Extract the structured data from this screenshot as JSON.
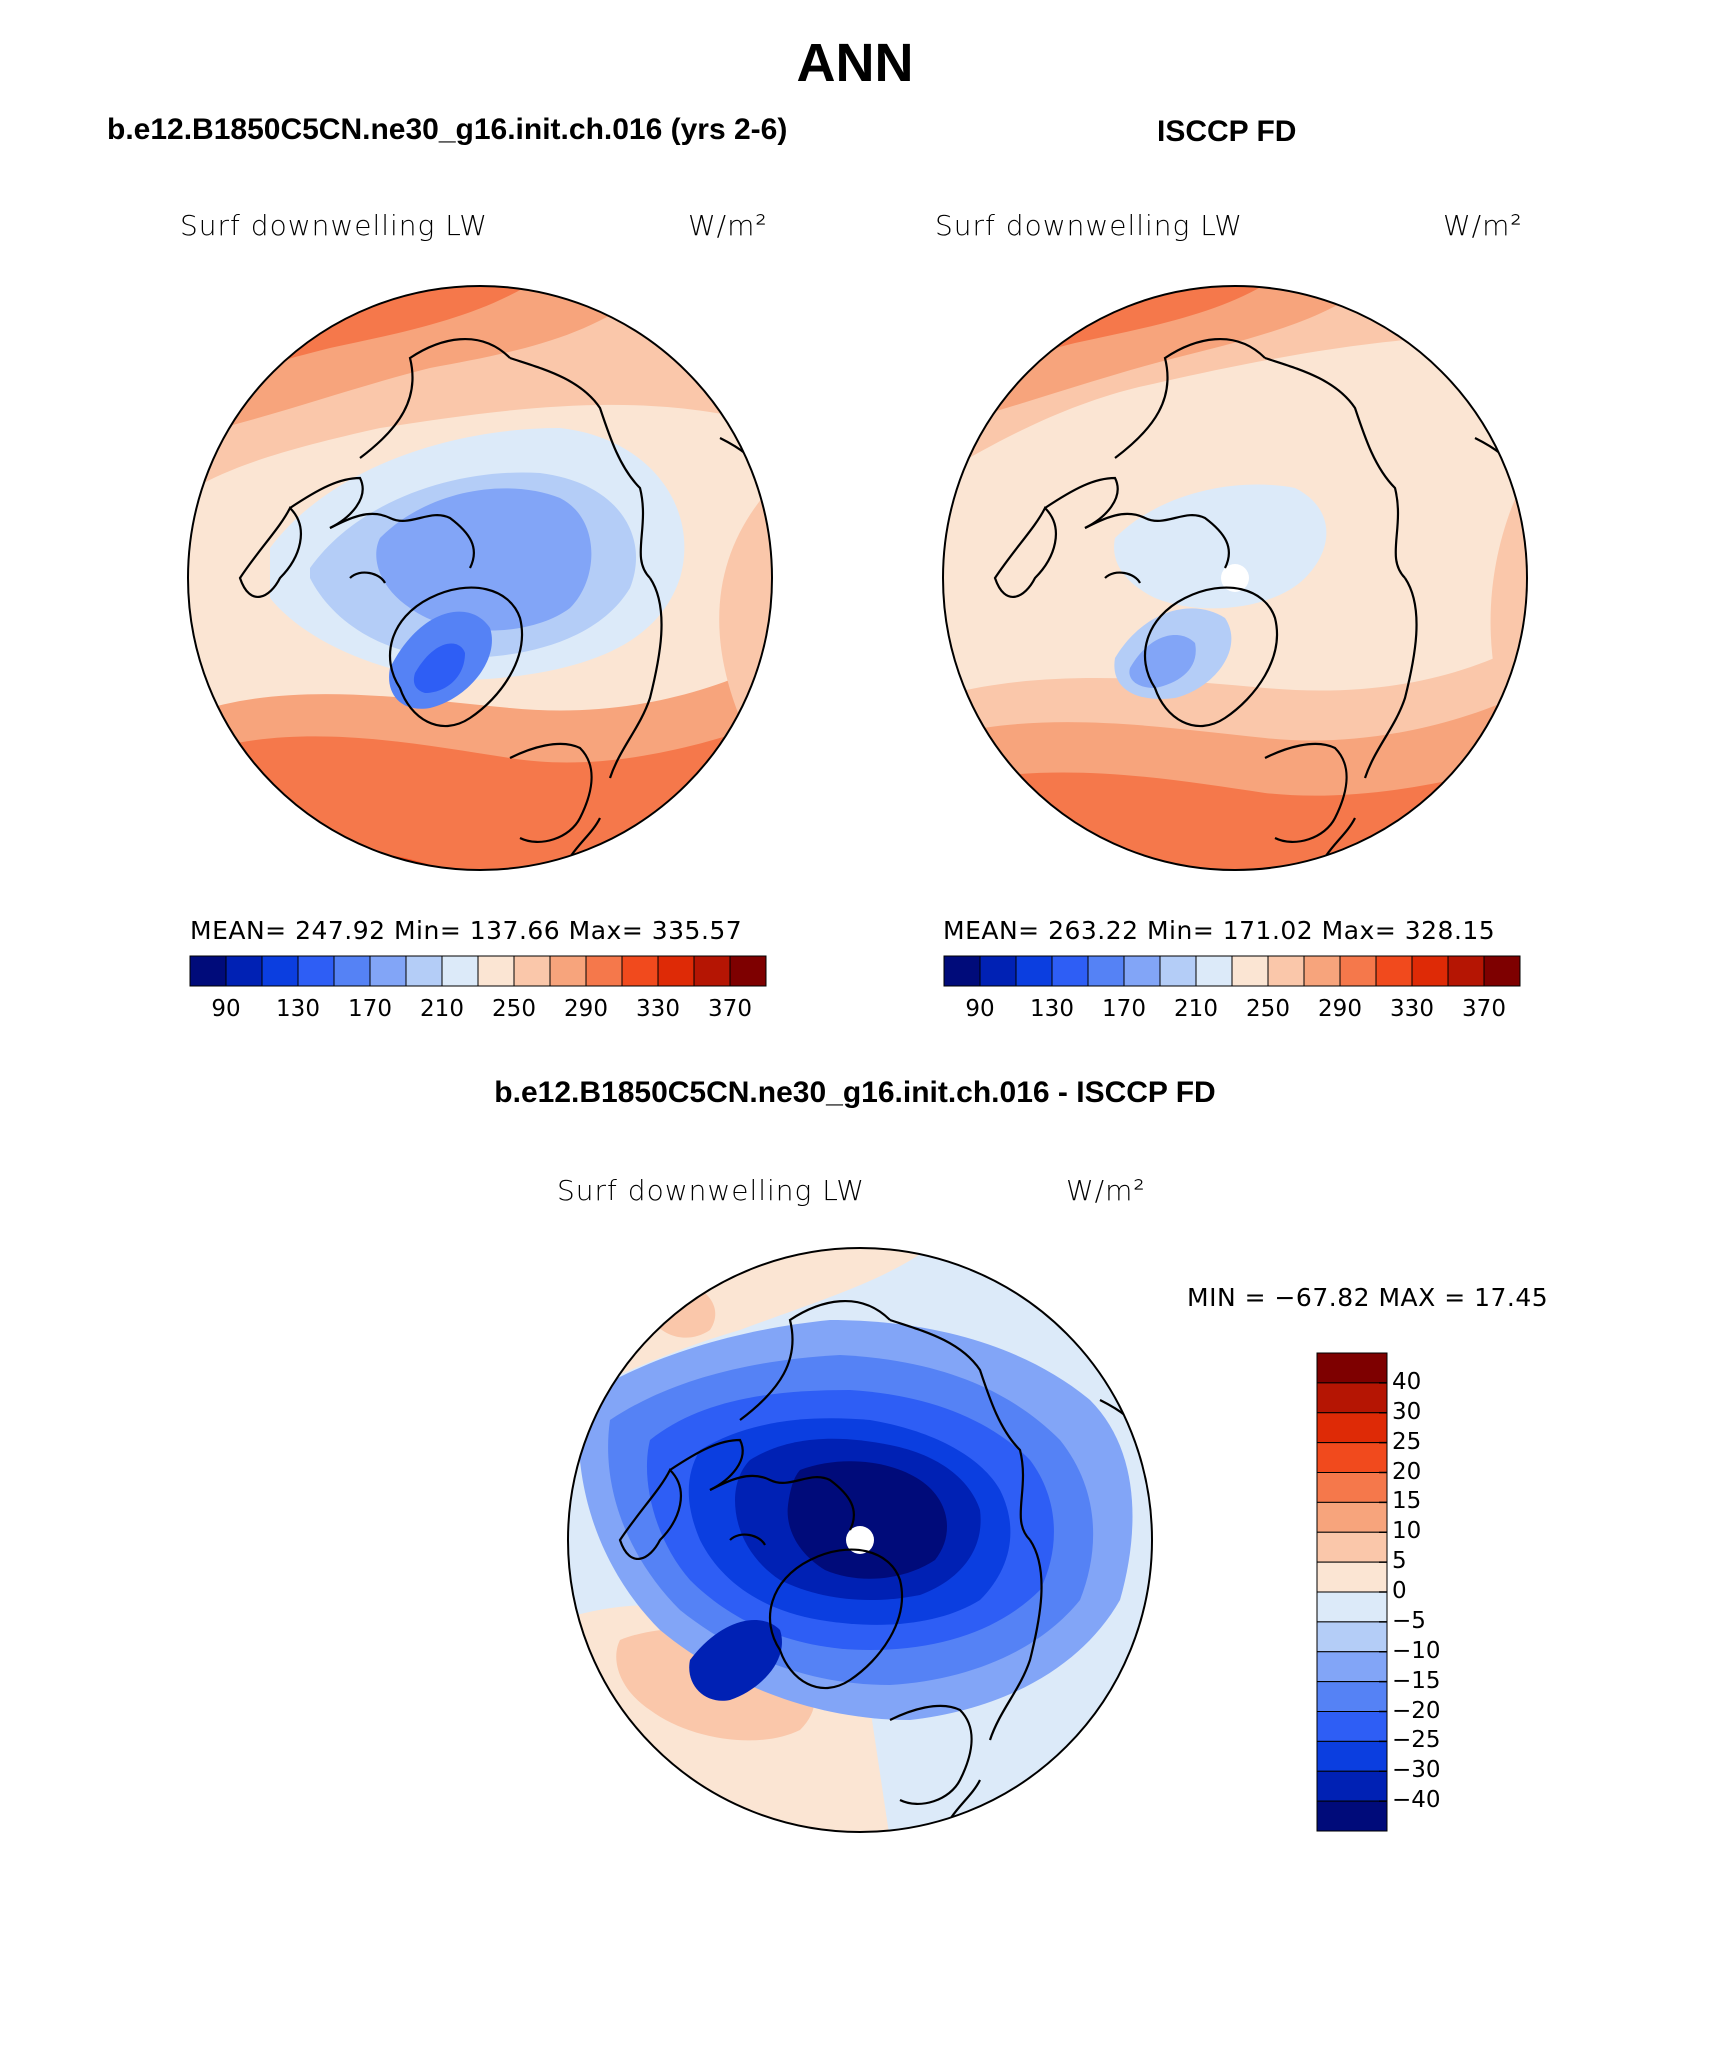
{
  "main_title": "ANN",
  "panels": [
    {
      "title": "b.e12.B1850C5CN.ne30_g16.init.ch.016 (yrs 2-6)",
      "variable": "Surf downwelling LW",
      "units": "W/m²",
      "stats": "MEAN= 247.92   Min= 137.66   Max= 335.57"
    },
    {
      "title": "ISCCP FD",
      "variable": "Surf downwelling LW",
      "units": "W/m²",
      "stats": "MEAN= 263.22   Min= 171.02   Max= 328.15"
    },
    {
      "title": "b.e12.B1850C5CN.ne30_g16.init.ch.016 - ISCCP FD",
      "variable": "Surf downwelling LW",
      "units": "W/m²",
      "stats": "MIN = −67.82  MAX =   17.45"
    }
  ],
  "chart_data": [
    {
      "type": "heatmap",
      "projection": "north polar stereographic",
      "colorbar_orientation": "horizontal",
      "colorbar_tick_labels": [
        "90",
        "130",
        "170",
        "210",
        "250",
        "290",
        "330",
        "370"
      ],
      "colorbar_colors": [
        "#000b7a",
        "#0021b4",
        "#0b3ee0",
        "#2e5ef5",
        "#5582f5",
        "#82a5f7",
        "#b4cdf7",
        "#dceaf9",
        "#fbe5d3",
        "#fac7aa",
        "#f7a47c",
        "#f5784b",
        "#f14a1d",
        "#de2a06",
        "#b51503",
        "#7e0000"
      ],
      "mean": 247.92,
      "min": 137.66,
      "max": 335.57
    },
    {
      "type": "heatmap",
      "projection": "north polar stereographic",
      "colorbar_orientation": "horizontal",
      "colorbar_tick_labels": [
        "90",
        "130",
        "170",
        "210",
        "250",
        "290",
        "330",
        "370"
      ],
      "colorbar_colors": [
        "#000b7a",
        "#0021b4",
        "#0b3ee0",
        "#2e5ef5",
        "#5582f5",
        "#82a5f7",
        "#b4cdf7",
        "#dceaf9",
        "#fbe5d3",
        "#fac7aa",
        "#f7a47c",
        "#f5784b",
        "#f14a1d",
        "#de2a06",
        "#b51503",
        "#7e0000"
      ],
      "mean": 263.22,
      "min": 171.02,
      "max": 328.15
    },
    {
      "type": "heatmap",
      "projection": "north polar stereographic",
      "colorbar_orientation": "vertical",
      "colorbar_tick_labels": [
        "40",
        "30",
        "25",
        "20",
        "15",
        "10",
        "5",
        "0",
        "−5",
        "−10",
        "−15",
        "−20",
        "−25",
        "−30",
        "−40"
      ],
      "colorbar_colors": [
        "#7e0000",
        "#b51503",
        "#de2a06",
        "#f14a1d",
        "#f5784b",
        "#f7a47c",
        "#fac7aa",
        "#fbe5d3",
        "#dceaf9",
        "#b4cdf7",
        "#82a5f7",
        "#5582f5",
        "#2e5ef5",
        "#0b3ee0",
        "#0021b4",
        "#000b7a"
      ],
      "min": -67.82,
      "max": 17.45
    }
  ]
}
